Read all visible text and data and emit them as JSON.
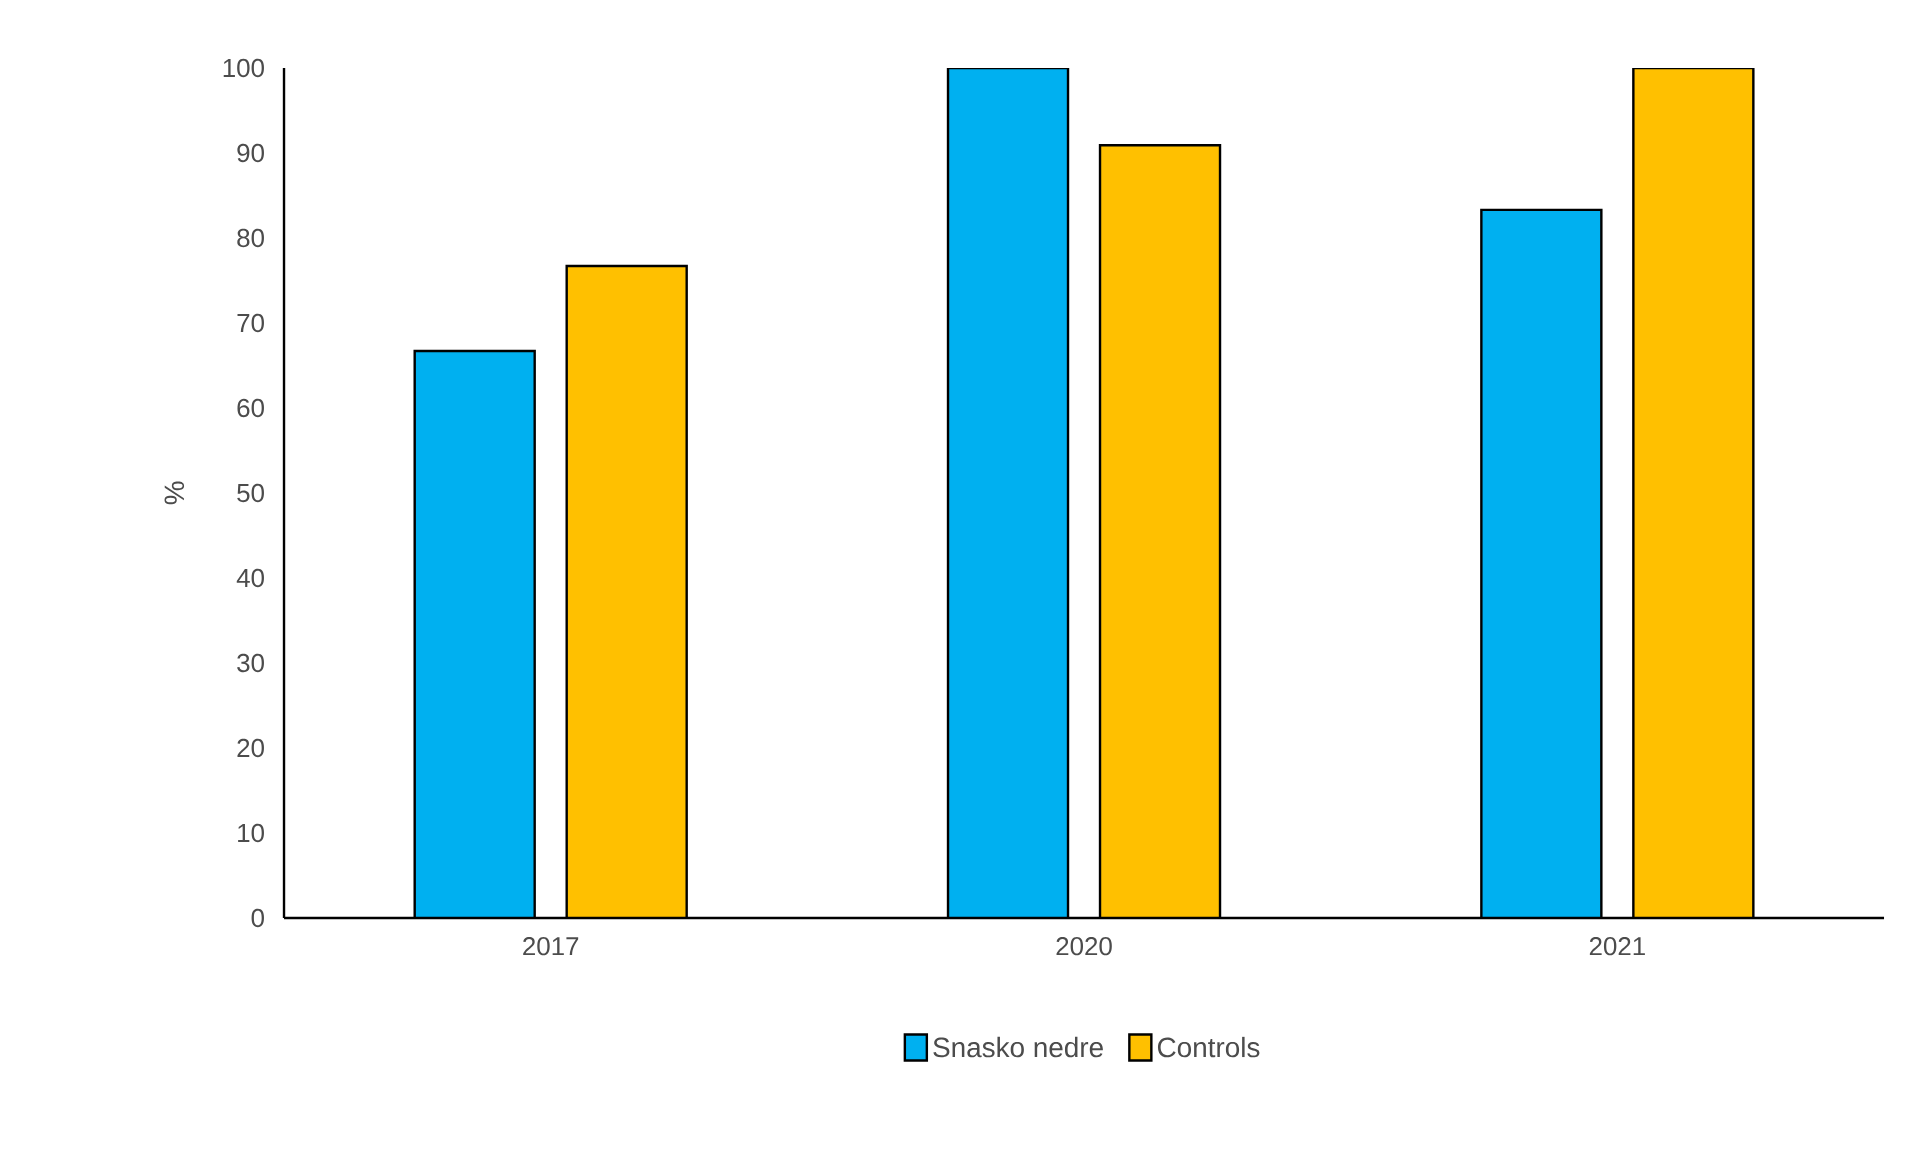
{
  "chart_data": {
    "type": "bar",
    "ylabel": "%",
    "categories": [
      "2017",
      "2020",
      "2021"
    ],
    "series": [
      {
        "name": "Snasko nedre",
        "color": "#00b0f0",
        "values": [
          66.7,
          100,
          83.3
        ]
      },
      {
        "name": "Controls",
        "color": "#ffc000",
        "values": [
          76.7,
          90.9,
          100
        ]
      }
    ],
    "ylim": [
      0,
      100
    ],
    "yticks": [
      0,
      10,
      20,
      30,
      40,
      50,
      60,
      70,
      80,
      90,
      100
    ],
    "legend": "bottom"
  }
}
